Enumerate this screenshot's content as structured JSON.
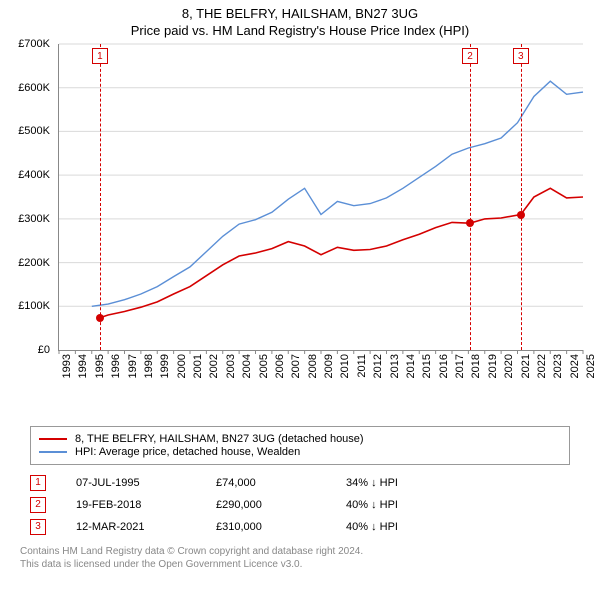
{
  "title": {
    "line1": "8, THE BELFRY, HAILSHAM, BN27 3UG",
    "line2": "Price paid vs. HM Land Registry's House Price Index (HPI)"
  },
  "chart": {
    "type": "line",
    "background_color": "#ffffff",
    "grid_color": "#d9d9d9",
    "axis_color": "#888888",
    "tick_fontsize": 11,
    "x": {
      "min": 1993,
      "max": 2025,
      "ticks": [
        1993,
        1994,
        1995,
        1996,
        1997,
        1998,
        1999,
        2000,
        2001,
        2002,
        2003,
        2004,
        2005,
        2006,
        2007,
        2008,
        2009,
        2010,
        2011,
        2012,
        2013,
        2014,
        2015,
        2016,
        2017,
        2018,
        2019,
        2020,
        2021,
        2022,
        2023,
        2024,
        2025
      ]
    },
    "y": {
      "min": 0,
      "max": 700000,
      "ticks": [
        0,
        100000,
        200000,
        300000,
        400000,
        500000,
        600000,
        700000
      ],
      "tick_labels": [
        "£0",
        "£100K",
        "£200K",
        "£300K",
        "£400K",
        "£500K",
        "£600K",
        "£700K"
      ]
    },
    "series": [
      {
        "id": "property",
        "label": "8, THE BELFRY, HAILSHAM, BN27 3UG (detached house)",
        "color": "#d40000",
        "width": 1.6,
        "points": [
          [
            1995.5,
            74000
          ],
          [
            1996,
            80000
          ],
          [
            1997,
            88000
          ],
          [
            1998,
            98000
          ],
          [
            1999,
            110000
          ],
          [
            2000,
            128000
          ],
          [
            2001,
            145000
          ],
          [
            2002,
            170000
          ],
          [
            2003,
            195000
          ],
          [
            2004,
            215000
          ],
          [
            2005,
            222000
          ],
          [
            2006,
            232000
          ],
          [
            2007,
            248000
          ],
          [
            2008,
            238000
          ],
          [
            2009,
            218000
          ],
          [
            2010,
            235000
          ],
          [
            2011,
            228000
          ],
          [
            2012,
            230000
          ],
          [
            2013,
            238000
          ],
          [
            2014,
            252000
          ],
          [
            2015,
            265000
          ],
          [
            2016,
            280000
          ],
          [
            2017,
            292000
          ],
          [
            2018.1,
            290000
          ],
          [
            2019,
            300000
          ],
          [
            2020,
            302000
          ],
          [
            2021.2,
            310000
          ],
          [
            2022,
            350000
          ],
          [
            2023,
            370000
          ],
          [
            2024,
            348000
          ],
          [
            2025,
            350000
          ]
        ]
      },
      {
        "id": "hpi",
        "label": "HPI: Average price, detached house, Wealden",
        "color": "#5b8fd6",
        "width": 1.4,
        "points": [
          [
            1995,
            100000
          ],
          [
            1996,
            105000
          ],
          [
            1997,
            115000
          ],
          [
            1998,
            128000
          ],
          [
            1999,
            145000
          ],
          [
            2000,
            168000
          ],
          [
            2001,
            190000
          ],
          [
            2002,
            225000
          ],
          [
            2003,
            260000
          ],
          [
            2004,
            288000
          ],
          [
            2005,
            298000
          ],
          [
            2006,
            315000
          ],
          [
            2007,
            345000
          ],
          [
            2008,
            370000
          ],
          [
            2009,
            310000
          ],
          [
            2010,
            340000
          ],
          [
            2011,
            330000
          ],
          [
            2012,
            335000
          ],
          [
            2013,
            348000
          ],
          [
            2014,
            370000
          ],
          [
            2015,
            395000
          ],
          [
            2016,
            420000
          ],
          [
            2017,
            448000
          ],
          [
            2018,
            462000
          ],
          [
            2019,
            472000
          ],
          [
            2020,
            485000
          ],
          [
            2021,
            520000
          ],
          [
            2022,
            580000
          ],
          [
            2023,
            615000
          ],
          [
            2024,
            585000
          ],
          [
            2025,
            590000
          ]
        ]
      }
    ],
    "events": [
      {
        "n": "1",
        "x": 1995.5,
        "date": "07-JUL-1995",
        "price": 74000,
        "price_label": "£74,000",
        "diff": "34% ↓ HPI",
        "color": "#d40000"
      },
      {
        "n": "2",
        "x": 2018.1,
        "date": "19-FEB-2018",
        "price": 290000,
        "price_label": "£290,000",
        "diff": "40% ↓ HPI",
        "color": "#d40000"
      },
      {
        "n": "3",
        "x": 2021.2,
        "date": "12-MAR-2021",
        "price": 310000,
        "price_label": "£310,000",
        "diff": "40% ↓ HPI",
        "color": "#d40000"
      }
    ]
  },
  "footer": {
    "line1": "Contains HM Land Registry data © Crown copyright and database right 2024.",
    "line2": "This data is licensed under the Open Government Licence v3.0."
  }
}
